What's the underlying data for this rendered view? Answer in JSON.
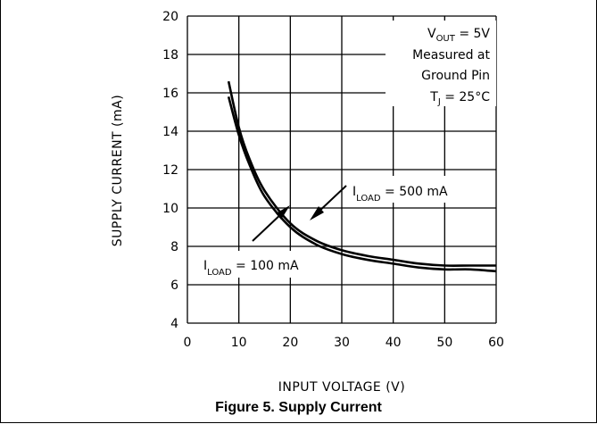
{
  "caption": "Figure 5. Supply Current",
  "chart_data": {
    "type": "line",
    "xlabel": "INPUT VOLTAGE (V)",
    "ylabel": "SUPPLY CURRENT (mA)",
    "xlim": [
      0,
      60
    ],
    "ylim": [
      4,
      20
    ],
    "xticks": [
      0,
      10,
      20,
      30,
      40,
      50,
      60
    ],
    "yticks": [
      4,
      6,
      8,
      10,
      12,
      14,
      16,
      18,
      20
    ],
    "grid": true,
    "conditions": {
      "vout": {
        "main": "V",
        "sub": "OUT",
        "rest": " = 5V"
      },
      "line2": "Measured at",
      "line3": "Ground Pin",
      "tj": {
        "main": "T",
        "sub": "J",
        "rest": " = 25°C"
      }
    },
    "series": [
      {
        "name": "I LOAD = 500 mA",
        "label_main": "I",
        "label_sub": "LOAD",
        "label_rest": " = 500 mA",
        "x": [
          8,
          10,
          12,
          15,
          20,
          25,
          30,
          35,
          40,
          45,
          50,
          55,
          60
        ],
        "y": [
          16.6,
          14.2,
          12.6,
          10.9,
          9.2,
          8.3,
          7.8,
          7.5,
          7.3,
          7.1,
          7.0,
          7.0,
          7.0
        ]
      },
      {
        "name": "I LOAD = 100 mA",
        "label_main": "I",
        "label_sub": "LOAD",
        "label_rest": " = 100 mA",
        "x": [
          8,
          10,
          12,
          15,
          20,
          25,
          30,
          35,
          40,
          45,
          50,
          55,
          60
        ],
        "y": [
          15.8,
          13.8,
          12.3,
          10.6,
          9.0,
          8.1,
          7.6,
          7.3,
          7.1,
          6.9,
          6.8,
          6.8,
          6.7
        ]
      }
    ]
  }
}
